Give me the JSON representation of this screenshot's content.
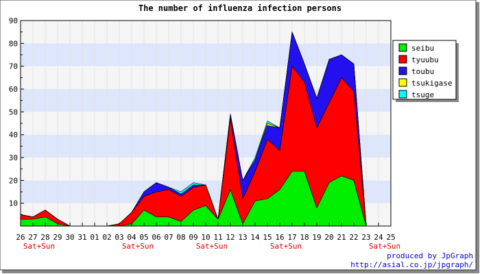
{
  "chart_data": {
    "type": "area",
    "stacked": true,
    "title": "The number of influenza infection persons",
    "xlabel": "",
    "ylabel": "",
    "ylim": [
      0,
      90
    ],
    "yticks": [
      10,
      20,
      30,
      40,
      50,
      60,
      70,
      80,
      90
    ],
    "x": [
      "26",
      "27",
      "28",
      "29",
      "30",
      "31",
      "01",
      "02",
      "03",
      "04",
      "05",
      "06",
      "07",
      "08",
      "09",
      "10",
      "11",
      "12",
      "13",
      "14",
      "15",
      "16",
      "17",
      "18",
      "19",
      "20",
      "21",
      "22",
      "23",
      "24",
      "25"
    ],
    "weekend_labels": [
      "Sat+Sun",
      "Sat+Sun",
      "Sat+Sun",
      "Sat+Sun",
      "Sat+Sun"
    ],
    "weekend_after_index": [
      1,
      9,
      15,
      21,
      29
    ],
    "grid": true,
    "legend_position": "top-right",
    "series": [
      {
        "name": "seibu",
        "color": "#00ee00",
        "values": [
          3,
          3,
          4,
          1,
          0,
          0,
          0,
          0,
          0,
          1,
          7,
          4,
          4,
          2,
          7,
          9,
          3,
          16,
          1,
          11,
          12,
          16,
          24,
          24,
          8,
          19,
          22,
          20,
          0,
          0,
          0
        ]
      },
      {
        "name": "tyuubu",
        "color": "#ff0000",
        "values": [
          2,
          1,
          3,
          2,
          0,
          0,
          0,
          0,
          1,
          5,
          6,
          11,
          12,
          11,
          10,
          9,
          0,
          31,
          11,
          13,
          26,
          17,
          46,
          39,
          35,
          35,
          43,
          39,
          0,
          0,
          0
        ]
      },
      {
        "name": "toubu",
        "color": "#2211ee",
        "values": [
          0,
          0,
          0,
          0,
          0,
          0,
          0,
          0,
          0,
          0,
          2,
          4,
          1,
          1,
          1,
          0,
          0,
          2,
          8,
          5,
          6,
          10,
          15,
          8,
          13,
          19,
          10,
          12,
          0,
          0,
          0
        ]
      },
      {
        "name": "tsukigase",
        "color": "#ffff00",
        "values": [
          0,
          0,
          0,
          0,
          0,
          0,
          0,
          0,
          0,
          0,
          0,
          0,
          0,
          0,
          0,
          0,
          0,
          0,
          0,
          0,
          1,
          0,
          0,
          0,
          0,
          0,
          0,
          0,
          0,
          0,
          0
        ]
      },
      {
        "name": "tsuge",
        "color": "#00ffff",
        "values": [
          0,
          0,
          0,
          0,
          0,
          0,
          0,
          0,
          0,
          0,
          0,
          0,
          0,
          1,
          1,
          0,
          0,
          0,
          0,
          1,
          1,
          0,
          0,
          0,
          0,
          0,
          0,
          0,
          0,
          0,
          0
        ]
      }
    ]
  },
  "credit": {
    "line1": "produced by JpGraph",
    "line2": "http://asial.co.jp/jpgraph/"
  }
}
